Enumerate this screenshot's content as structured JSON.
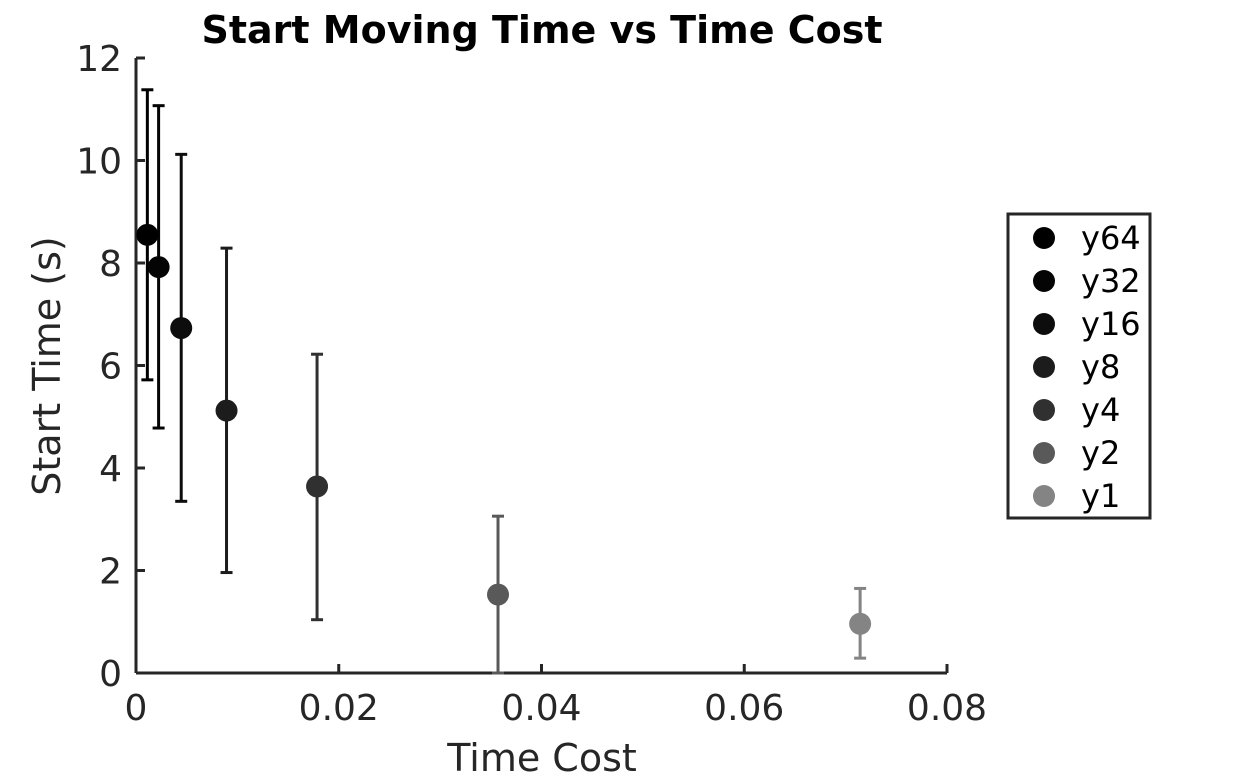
{
  "chart_data": {
    "type": "scatter",
    "title": "Start Moving Time vs Time Cost",
    "xlabel": "Time Cost",
    "ylabel": "Start Time (s)",
    "xlim": [
      0,
      0.08
    ],
    "ylim": [
      0,
      12
    ],
    "xticks": [
      0,
      0.02,
      0.04,
      0.06,
      0.08
    ],
    "xtick_labels": [
      "0",
      "0.02",
      "0.04",
      "0.06",
      "0.08"
    ],
    "yticks": [
      0,
      2,
      4,
      6,
      8,
      10,
      12
    ],
    "ytick_labels": [
      "0",
      "2",
      "4",
      "6",
      "8",
      "10",
      "12"
    ],
    "grid": false,
    "legend_position": "right",
    "series": [
      {
        "name": "y64",
        "x": 0.00112,
        "y": 8.55,
        "err_low": 5.72,
        "err_high": 11.38,
        "color": "#000000"
      },
      {
        "name": "y32",
        "x": 0.00223,
        "y": 7.92,
        "err_low": 4.78,
        "err_high": 11.07,
        "color": "#040404"
      },
      {
        "name": "y16",
        "x": 0.00446,
        "y": 6.73,
        "err_low": 3.35,
        "err_high": 10.12,
        "color": "#0d0d0d"
      },
      {
        "name": "y8",
        "x": 0.00893,
        "y": 5.12,
        "err_low": 1.96,
        "err_high": 8.29,
        "color": "#1c1c1c"
      },
      {
        "name": "y4",
        "x": 0.01786,
        "y": 3.64,
        "err_low": 1.04,
        "err_high": 6.22,
        "color": "#303030"
      },
      {
        "name": "y2",
        "x": 0.03571,
        "y": 1.53,
        "err_low": 0.0,
        "err_high": 3.06,
        "color": "#595959"
      },
      {
        "name": "y1",
        "x": 0.07143,
        "y": 0.96,
        "err_low": 0.29,
        "err_high": 1.65,
        "color": "#848484"
      }
    ]
  }
}
